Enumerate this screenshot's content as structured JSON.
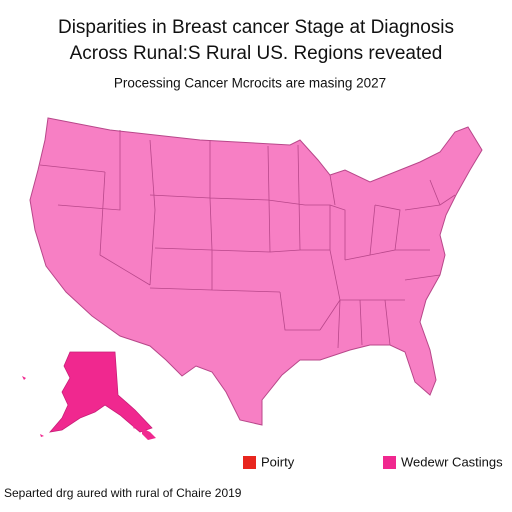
{
  "header": {
    "title": [
      "Disparities in Breast cancer Stage at Diagnosis",
      "Across Runal:S Rural US. Regions reveated"
    ],
    "subtitle": "Processing Cancer Mcrocits are masing 2027"
  },
  "legend": [
    {
      "label": "Poirty",
      "color": "#e8261e"
    },
    {
      "label": "Wedewr Castings",
      "color": "#f0288f"
    }
  ],
  "footer": "Separted drg aured with rural of Chaire 2019"
}
